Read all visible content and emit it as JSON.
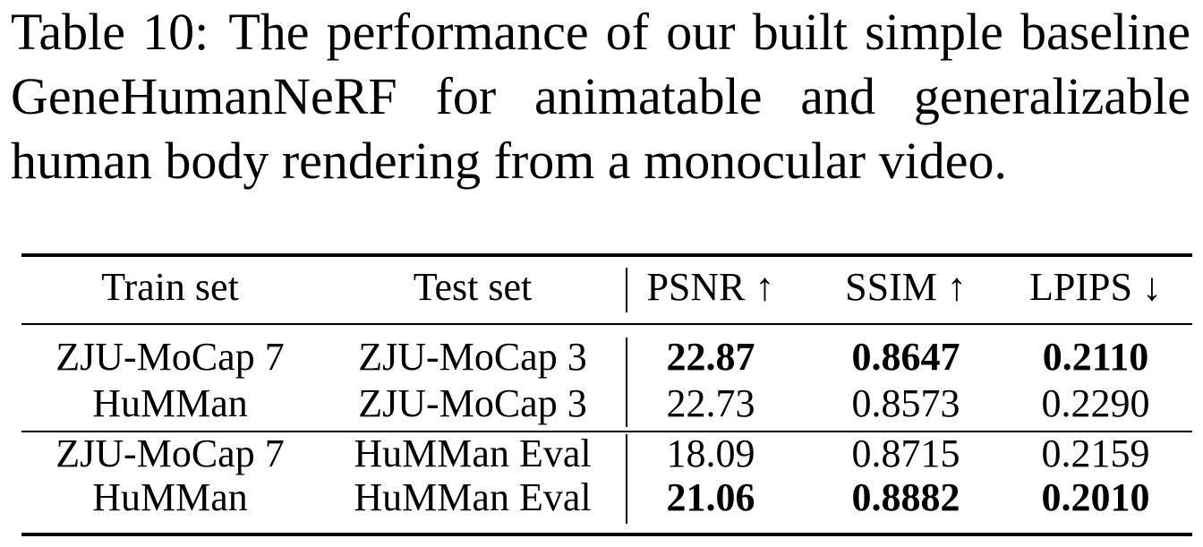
{
  "caption": {
    "label": "Table 10:",
    "text": "The performance of our built simple baseline GeneHumanNeRF for animatable and generalizable human body rendering from a monocular video."
  },
  "table": {
    "headers": [
      "Train set",
      "Test set",
      "PSNR ↑",
      "SSIM ↑",
      "LPIPS ↓"
    ],
    "rows": [
      {
        "train": "ZJU-MoCap 7",
        "test": "ZJU-MoCap 3",
        "psnr": "22.87",
        "ssim": "0.8647",
        "lpips": "0.2110",
        "bold": true
      },
      {
        "train": "HuMMan",
        "test": "ZJU-MoCap 3",
        "psnr": "22.73",
        "ssim": "0.8573",
        "lpips": "0.2290",
        "bold": false
      },
      {
        "train": "ZJU-MoCap 7",
        "test": "HuMMan Eval",
        "psnr": "18.09",
        "ssim": "0.8715",
        "lpips": "0.2159",
        "bold": false
      },
      {
        "train": "HuMMan",
        "test": "HuMMan Eval",
        "psnr": "21.06",
        "ssim": "0.8882",
        "lpips": "0.2010",
        "bold": true
      }
    ]
  }
}
